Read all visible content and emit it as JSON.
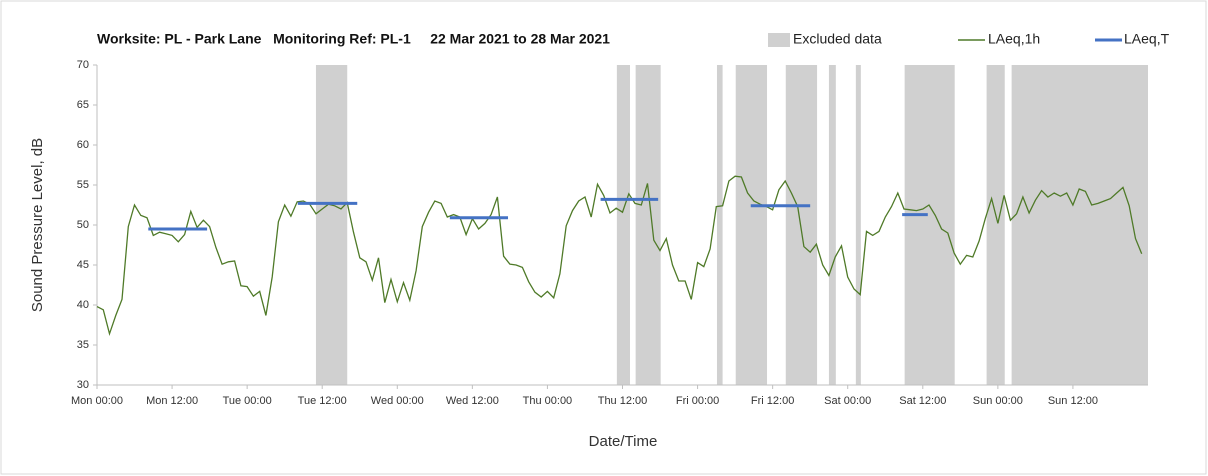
{
  "chart_data": {
    "type": "line",
    "title": "Worksite: PL - Park Lane   Monitoring Ref: PL-1     22 Mar 2021 to 28 Mar 2021",
    "x_label": "Date/Time",
    "y_label": "Sound Pressure Level, dB",
    "xlim": [
      0,
      168
    ],
    "ylim": [
      30,
      70
    ],
    "yticks": [
      30,
      35,
      40,
      45,
      50,
      55,
      60,
      65,
      70
    ],
    "xticks": [
      {
        "value": 0,
        "label": "Mon 00:00"
      },
      {
        "value": 12,
        "label": "Mon 12:00"
      },
      {
        "value": 24,
        "label": "Tue 00:00"
      },
      {
        "value": 36,
        "label": "Tue 12:00"
      },
      {
        "value": 48,
        "label": "Wed 00:00"
      },
      {
        "value": 60,
        "label": "Wed 12:00"
      },
      {
        "value": 72,
        "label": "Thu 00:00"
      },
      {
        "value": 84,
        "label": "Thu 12:00"
      },
      {
        "value": 96,
        "label": "Fri 00:00"
      },
      {
        "value": 108,
        "label": "Fri 12:00"
      },
      {
        "value": 120,
        "label": "Sat 00:00"
      },
      {
        "value": 132,
        "label": "Sat 12:00"
      },
      {
        "value": 144,
        "label": "Sun 00:00"
      },
      {
        "value": 156,
        "label": "Sun 12:00"
      }
    ],
    "excluded": {
      "name": "Excluded data",
      "color": "#d0d0d0",
      "ranges": [
        [
          35,
          40
        ],
        [
          83.1,
          85.2
        ],
        [
          86.1,
          90.1
        ],
        [
          99.1,
          100
        ],
        [
          102.1,
          107.1
        ],
        [
          110.1,
          115.1
        ],
        [
          117,
          118.1
        ],
        [
          121.3,
          122.1
        ],
        [
          129.1,
          137.1
        ],
        [
          142.2,
          145.1
        ],
        [
          146.2,
          168
        ]
      ]
    },
    "series": [
      {
        "name": "LAeq,1h",
        "color": "#4f7a28",
        "x": [
          0,
          1,
          2,
          3,
          4,
          5,
          6,
          7,
          8,
          9,
          10,
          11,
          12,
          13,
          14,
          15,
          16,
          17,
          18,
          19,
          20,
          21,
          22,
          23,
          24,
          25,
          26,
          27,
          28,
          29,
          30,
          31,
          32,
          33,
          34,
          35,
          36,
          37,
          38,
          39,
          40,
          41,
          42,
          43,
          44,
          45,
          46,
          47,
          48,
          49,
          50,
          51,
          52,
          53,
          54,
          55,
          56,
          57,
          58,
          59,
          60,
          61,
          62,
          63,
          64,
          65,
          66,
          67,
          68,
          69,
          70,
          71,
          72,
          73,
          74,
          75,
          76,
          77,
          78,
          79,
          80,
          81,
          82,
          83,
          84,
          85,
          86,
          87,
          88,
          89,
          90,
          91,
          92,
          93,
          94,
          95,
          96,
          97,
          98,
          99,
          100,
          101,
          102,
          103,
          104,
          105,
          106,
          107,
          108,
          109,
          110,
          111,
          112,
          113,
          114,
          115,
          116,
          117,
          118,
          119,
          120,
          121,
          122,
          123,
          124,
          125,
          126,
          127,
          128,
          129,
          130,
          131,
          132,
          133,
          134,
          135,
          136,
          137,
          138,
          139,
          140,
          141,
          142,
          143,
          144,
          145,
          146,
          147,
          148,
          149,
          150,
          151,
          152,
          153,
          154,
          155,
          156,
          157,
          158,
          159,
          160,
          161,
          162,
          163,
          164,
          165,
          166,
          167
        ],
        "values": [
          39.8,
          39.4,
          36.4,
          38.7,
          40.7,
          49.8,
          52.5,
          51.2,
          50.9,
          48.7,
          49.1,
          48.9,
          48.7,
          47.9,
          48.8,
          51.7,
          49.7,
          50.6,
          49.8,
          47.2,
          45.1,
          45.4,
          45.5,
          42.4,
          42.3,
          41.1,
          41.7,
          38.7,
          43.5,
          50.4,
          52.5,
          51.1,
          52.9,
          53.0,
          52.6,
          51.4,
          52.0,
          52.6,
          52.4,
          52.0,
          52.8,
          49.1,
          45.9,
          45.4,
          43.1,
          45.9,
          40.3,
          43.2,
          40.4,
          42.8,
          40.6,
          44.3,
          49.8,
          51.6,
          53.0,
          52.7,
          51.0,
          51.3,
          51.0,
          48.8,
          50.8,
          49.5,
          50.2,
          51.3,
          53.5,
          46.1,
          45.1,
          45.0,
          44.7,
          42.9,
          41.6,
          41.0,
          41.7,
          40.9,
          43.9,
          49.9,
          51.8,
          53.0,
          53.5,
          51.0,
          55.1,
          53.7,
          51.5,
          52.1,
          51.6,
          53.9,
          52.7,
          52.5,
          55.2,
          48.1,
          46.8,
          48.3,
          45.0,
          43.0,
          43.0,
          40.7,
          45.3,
          44.8,
          47.0,
          52.3,
          52.4,
          55.5,
          56.1,
          56.0,
          54.0,
          53.0,
          52.6,
          52.3,
          51.9,
          54.4,
          55.5,
          54.0,
          52.3,
          47.3,
          46.6,
          47.6,
          45.0,
          43.7,
          46.0,
          47.4,
          43.5,
          42.0,
          41.3,
          49.2,
          48.7,
          49.2,
          51.0,
          52.3,
          54.0,
          52.0,
          51.9,
          51.8,
          52.0,
          52.5,
          51.2,
          49.5,
          49.0,
          46.5,
          45.1,
          46.2,
          46.0,
          48.0,
          50.8,
          53.3,
          50.2,
          53.7,
          50.6,
          51.4,
          53.5,
          51.5,
          53.1,
          54.3,
          53.5,
          54.0,
          53.6,
          54.0,
          52.5,
          54.5,
          54.2,
          52.5,
          52.7,
          53.0,
          53.3,
          54.0,
          54.7,
          52.4,
          48.3,
          46.4
        ]
      },
      {
        "name": "LAeq,T",
        "color": "#4472c4",
        "segments": [
          {
            "start": 8.2,
            "end": 17.6,
            "value": 49.5
          },
          {
            "start": 32.1,
            "end": 41.6,
            "value": 52.7
          },
          {
            "start": 56.4,
            "end": 65.7,
            "value": 50.9
          },
          {
            "start": 80.5,
            "end": 89.7,
            "value": 53.2
          },
          {
            "start": 104.5,
            "end": 114,
            "value": 52.4
          },
          {
            "start": 128.7,
            "end": 132.8,
            "value": 51.3
          }
        ]
      }
    ]
  }
}
